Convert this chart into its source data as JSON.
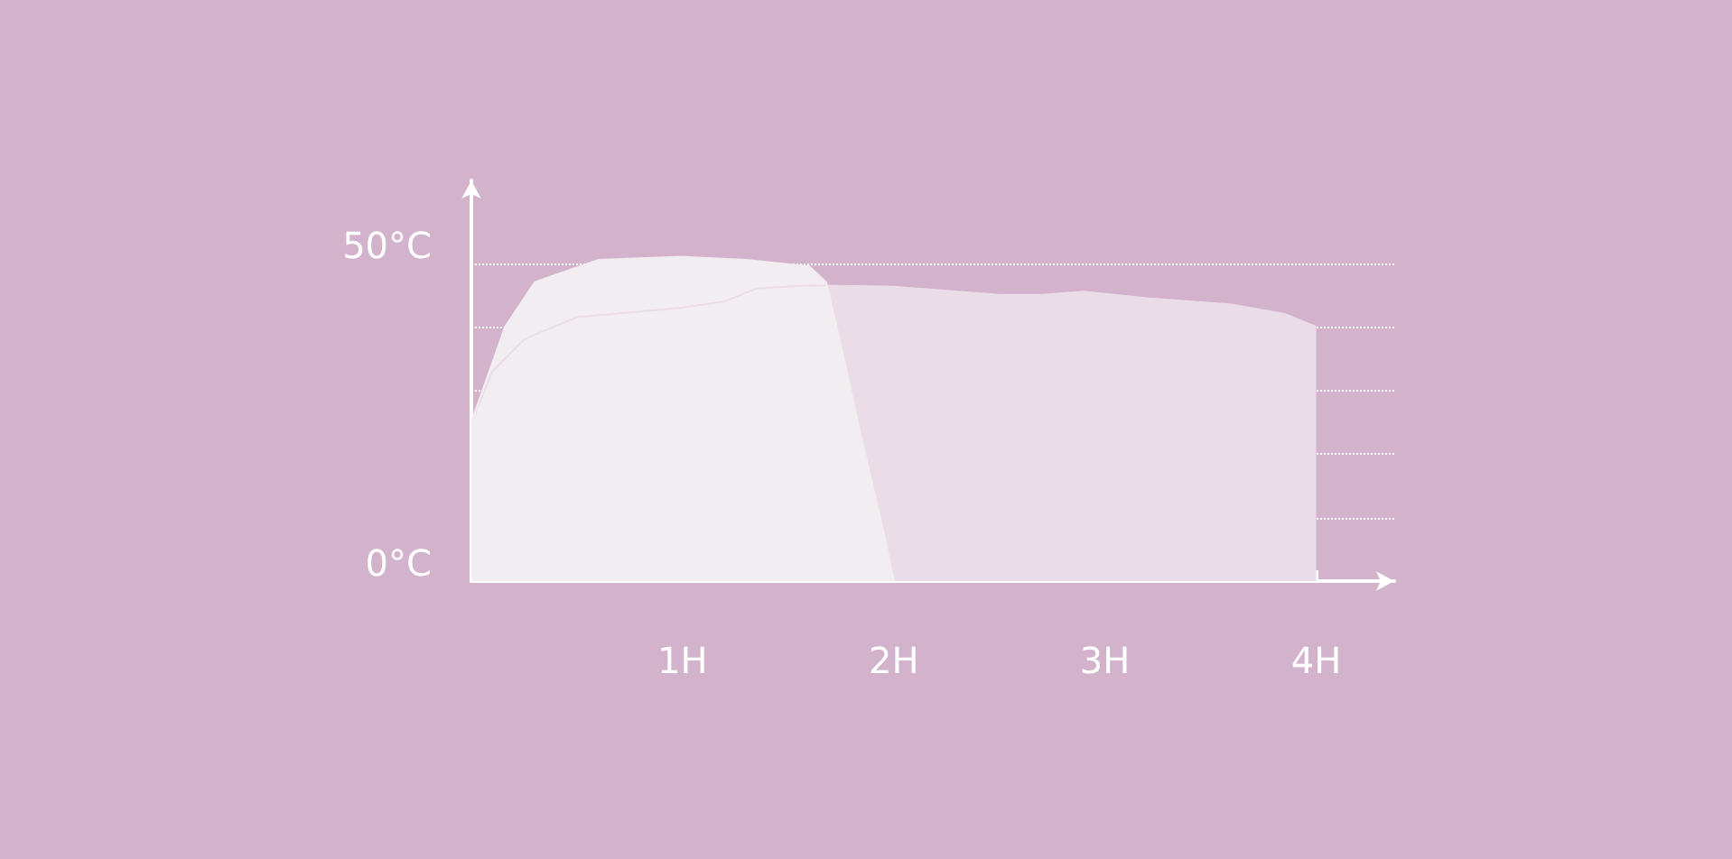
{
  "chart_data": {
    "type": "area",
    "xlim": [
      0,
      4.37
    ],
    "ylim": [
      0,
      63
    ],
    "xticks": [
      {
        "value": 1,
        "label": "1H"
      },
      {
        "value": 2,
        "label": "2H"
      },
      {
        "value": 3,
        "label": "3H"
      },
      {
        "value": 4,
        "label": "4H"
      }
    ],
    "yticks": [
      {
        "value": 0,
        "label": "0°C"
      },
      {
        "value": 10,
        "label": null
      },
      {
        "value": 20,
        "label": null
      },
      {
        "value": 30,
        "label": null
      },
      {
        "value": 40,
        "label": null
      },
      {
        "value": 50,
        "label": "50°C"
      }
    ],
    "grid": "y",
    "series": [
      {
        "color": "#eadde7",
        "x": [
          0,
          0.1,
          0.25,
          0.5,
          1,
          1.2,
          1.35,
          1.6,
          2,
          2.5,
          2.7,
          2.9,
          3.2,
          3.6,
          3.85,
          4
        ],
        "values": [
          25,
          33,
          38,
          41.5,
          43,
          44,
          46,
          46.5,
          46.3,
          45,
          45,
          45.5,
          44.5,
          43.5,
          42,
          40
        ]
      },
      {
        "color": "#f2edf1",
        "x": [
          0,
          0.16,
          0.3,
          0.6,
          1,
          1.3,
          1.6,
          1.68,
          1.75,
          1.85,
          1.95,
          2
        ],
        "values": [
          25,
          40,
          47,
          50.5,
          51,
          50.5,
          49.5,
          47,
          37,
          22,
          8,
          0
        ]
      }
    ]
  }
}
